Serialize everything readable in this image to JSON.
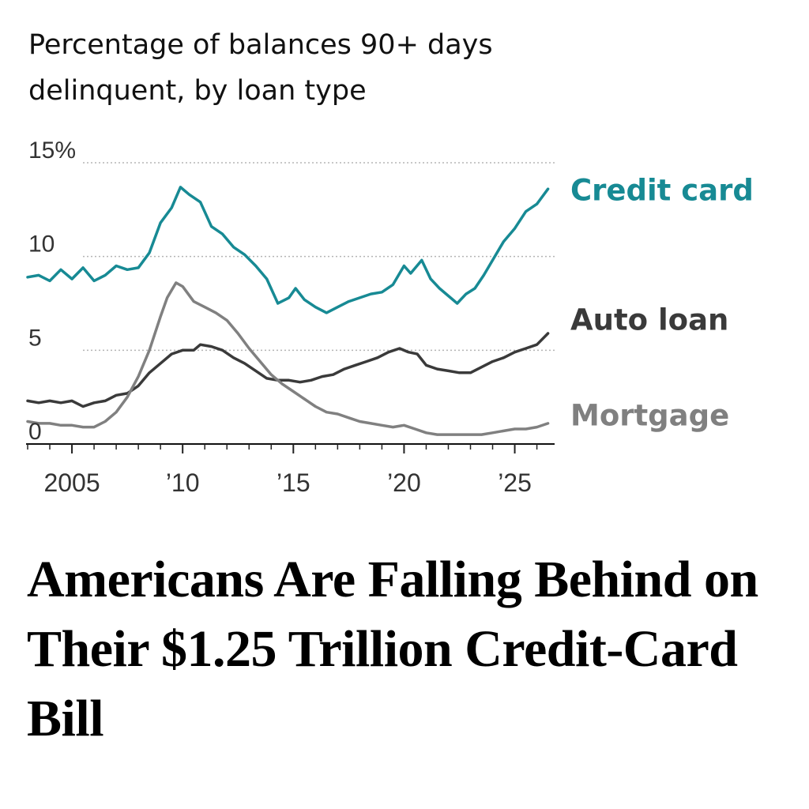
{
  "chart_title": "Percentage of balances 90+ days delinquent, by loan type",
  "headline": "Americans Are Falling Behind on Their $1.25 Trillion Credit-Card Bill",
  "chart_data": {
    "type": "line",
    "title": "Percentage of balances 90+ days delinquent, by loan type",
    "xlabel": "",
    "ylabel": "",
    "ylim": [
      0,
      15
    ],
    "xlim": [
      2003,
      2026.8
    ],
    "grid": true,
    "legend": "direct labels at right end of lines",
    "y_ticks": [
      {
        "value": 15,
        "label": "15%"
      },
      {
        "value": 10,
        "label": "10"
      },
      {
        "value": 5,
        "label": "5"
      },
      {
        "value": 0,
        "label": "0"
      }
    ],
    "x_ticks": [
      {
        "value": 2005,
        "label": "2005"
      },
      {
        "value": 2010,
        "label": "’10"
      },
      {
        "value": 2015,
        "label": "’15"
      },
      {
        "value": 2020,
        "label": "’20"
      },
      {
        "value": 2025,
        "label": "’25"
      }
    ],
    "series": [
      {
        "name": "Credit card",
        "color": "#178a94",
        "points": [
          [
            2003.0,
            8.9
          ],
          [
            2003.5,
            9.0
          ],
          [
            2004.0,
            8.7
          ],
          [
            2004.5,
            9.3
          ],
          [
            2005.0,
            8.8
          ],
          [
            2005.5,
            9.4
          ],
          [
            2006.0,
            8.7
          ],
          [
            2006.5,
            9.0
          ],
          [
            2007.0,
            9.5
          ],
          [
            2007.5,
            9.3
          ],
          [
            2008.0,
            9.4
          ],
          [
            2008.5,
            10.2
          ],
          [
            2009.0,
            11.8
          ],
          [
            2009.5,
            12.6
          ],
          [
            2009.9,
            13.7
          ],
          [
            2010.3,
            13.3
          ],
          [
            2010.8,
            12.9
          ],
          [
            2011.3,
            11.6
          ],
          [
            2011.8,
            11.2
          ],
          [
            2012.3,
            10.5
          ],
          [
            2012.8,
            10.1
          ],
          [
            2013.3,
            9.5
          ],
          [
            2013.8,
            8.8
          ],
          [
            2014.3,
            7.5
          ],
          [
            2014.8,
            7.8
          ],
          [
            2015.1,
            8.3
          ],
          [
            2015.5,
            7.7
          ],
          [
            2016.0,
            7.3
          ],
          [
            2016.5,
            7.0
          ],
          [
            2017.0,
            7.3
          ],
          [
            2017.5,
            7.6
          ],
          [
            2018.0,
            7.8
          ],
          [
            2018.5,
            8.0
          ],
          [
            2019.0,
            8.1
          ],
          [
            2019.5,
            8.5
          ],
          [
            2020.0,
            9.5
          ],
          [
            2020.3,
            9.1
          ],
          [
            2020.8,
            9.8
          ],
          [
            2021.2,
            8.8
          ],
          [
            2021.6,
            8.3
          ],
          [
            2022.0,
            7.9
          ],
          [
            2022.4,
            7.5
          ],
          [
            2022.8,
            8.0
          ],
          [
            2023.2,
            8.3
          ],
          [
            2023.6,
            9.0
          ],
          [
            2024.0,
            9.8
          ],
          [
            2024.5,
            10.8
          ],
          [
            2025.0,
            11.5
          ],
          [
            2025.5,
            12.4
          ],
          [
            2026.0,
            12.8
          ],
          [
            2026.5,
            13.6
          ]
        ]
      },
      {
        "name": "Auto loan",
        "color": "#3a3a3a",
        "points": [
          [
            2003.0,
            2.3
          ],
          [
            2003.5,
            2.2
          ],
          [
            2004.0,
            2.3
          ],
          [
            2004.5,
            2.2
          ],
          [
            2005.0,
            2.3
          ],
          [
            2005.5,
            2.0
          ],
          [
            2006.0,
            2.2
          ],
          [
            2006.5,
            2.3
          ],
          [
            2007.0,
            2.6
          ],
          [
            2007.5,
            2.7
          ],
          [
            2008.0,
            3.1
          ],
          [
            2008.5,
            3.8
          ],
          [
            2009.0,
            4.3
          ],
          [
            2009.5,
            4.8
          ],
          [
            2010.0,
            5.0
          ],
          [
            2010.5,
            5.0
          ],
          [
            2010.8,
            5.3
          ],
          [
            2011.3,
            5.2
          ],
          [
            2011.8,
            5.0
          ],
          [
            2012.3,
            4.6
          ],
          [
            2012.8,
            4.3
          ],
          [
            2013.3,
            3.9
          ],
          [
            2013.8,
            3.5
          ],
          [
            2014.3,
            3.4
          ],
          [
            2014.8,
            3.4
          ],
          [
            2015.3,
            3.3
          ],
          [
            2015.8,
            3.4
          ],
          [
            2016.3,
            3.6
          ],
          [
            2016.8,
            3.7
          ],
          [
            2017.3,
            4.0
          ],
          [
            2017.8,
            4.2
          ],
          [
            2018.3,
            4.4
          ],
          [
            2018.8,
            4.6
          ],
          [
            2019.3,
            4.9
          ],
          [
            2019.8,
            5.1
          ],
          [
            2020.2,
            4.9
          ],
          [
            2020.6,
            4.8
          ],
          [
            2021.0,
            4.2
          ],
          [
            2021.5,
            4.0
          ],
          [
            2022.0,
            3.9
          ],
          [
            2022.5,
            3.8
          ],
          [
            2023.0,
            3.8
          ],
          [
            2023.5,
            4.1
          ],
          [
            2024.0,
            4.4
          ],
          [
            2024.5,
            4.6
          ],
          [
            2025.0,
            4.9
          ],
          [
            2025.5,
            5.1
          ],
          [
            2026.0,
            5.3
          ],
          [
            2026.5,
            5.9
          ]
        ]
      },
      {
        "name": "Mortgage",
        "color": "#808080",
        "points": [
          [
            2003.0,
            1.2
          ],
          [
            2003.5,
            1.1
          ],
          [
            2004.0,
            1.1
          ],
          [
            2004.5,
            1.0
          ],
          [
            2005.0,
            1.0
          ],
          [
            2005.5,
            0.9
          ],
          [
            2006.0,
            0.9
          ],
          [
            2006.5,
            1.2
          ],
          [
            2007.0,
            1.7
          ],
          [
            2007.5,
            2.5
          ],
          [
            2008.0,
            3.6
          ],
          [
            2008.5,
            5.0
          ],
          [
            2009.0,
            6.8
          ],
          [
            2009.3,
            7.8
          ],
          [
            2009.7,
            8.6
          ],
          [
            2010.0,
            8.4
          ],
          [
            2010.5,
            7.6
          ],
          [
            2011.0,
            7.3
          ],
          [
            2011.5,
            7.0
          ],
          [
            2012.0,
            6.6
          ],
          [
            2012.5,
            5.9
          ],
          [
            2013.0,
            5.1
          ],
          [
            2013.5,
            4.4
          ],
          [
            2014.0,
            3.7
          ],
          [
            2014.5,
            3.2
          ],
          [
            2015.0,
            2.8
          ],
          [
            2015.5,
            2.4
          ],
          [
            2016.0,
            2.0
          ],
          [
            2016.5,
            1.7
          ],
          [
            2017.0,
            1.6
          ],
          [
            2017.5,
            1.4
          ],
          [
            2018.0,
            1.2
          ],
          [
            2018.5,
            1.1
          ],
          [
            2019.0,
            1.0
          ],
          [
            2019.5,
            0.9
          ],
          [
            2020.0,
            1.0
          ],
          [
            2020.5,
            0.8
          ],
          [
            2021.0,
            0.6
          ],
          [
            2021.5,
            0.5
          ],
          [
            2022.0,
            0.5
          ],
          [
            2022.5,
            0.5
          ],
          [
            2023.0,
            0.5
          ],
          [
            2023.5,
            0.5
          ],
          [
            2024.0,
            0.6
          ],
          [
            2024.5,
            0.7
          ],
          [
            2025.0,
            0.8
          ],
          [
            2025.5,
            0.8
          ],
          [
            2026.0,
            0.9
          ],
          [
            2026.5,
            1.1
          ]
        ]
      }
    ]
  }
}
